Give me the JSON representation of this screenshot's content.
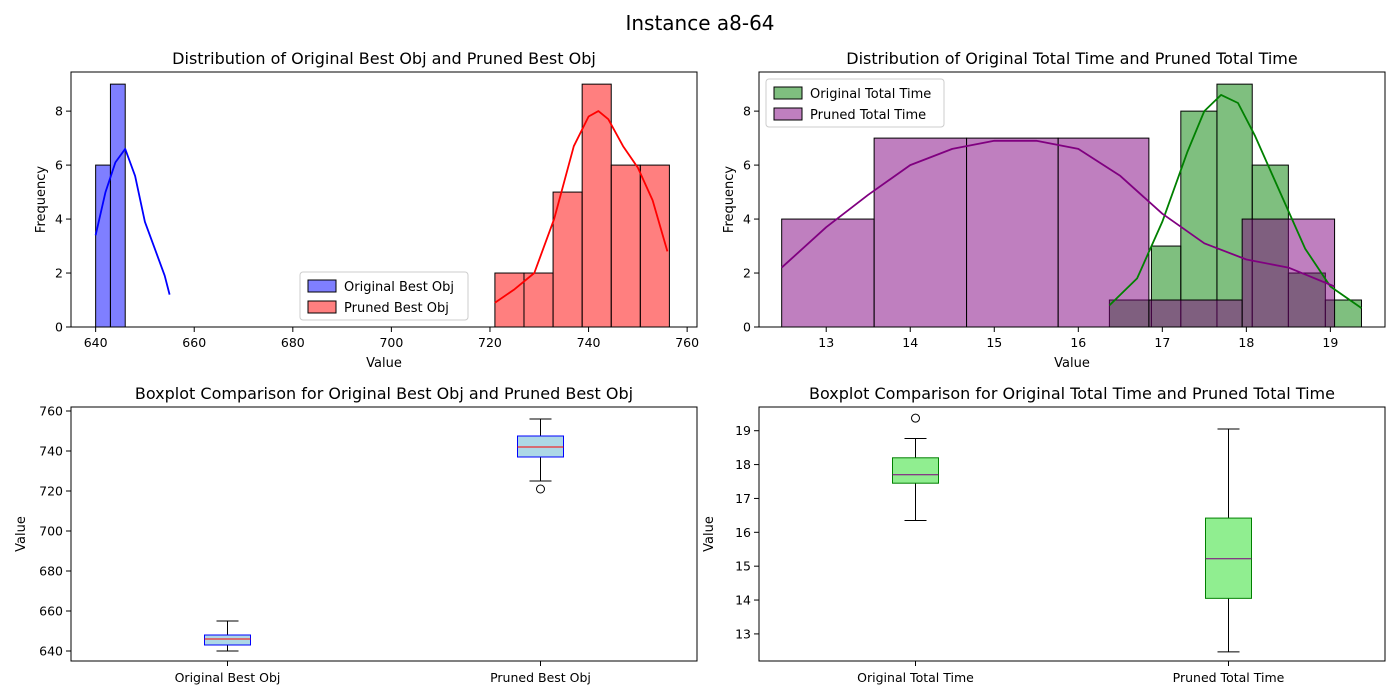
{
  "suptitle": "Instance a8-64",
  "colors": {
    "orig_obj": "#0000ff",
    "pruned_obj": "#ff0000",
    "orig_time": "#008000",
    "pruned_time": "#800080",
    "box_face_obj": "#add8e6",
    "box_face_time": "#90ee90"
  },
  "chart_data": [
    {
      "type": "histogram",
      "title": "Distribution of Original Best Obj and Pruned Best Obj",
      "xlabel": "Value",
      "ylabel": "Frequency",
      "xlim": [
        635,
        762
      ],
      "ylim": [
        0,
        9.45
      ],
      "xticks": [
        640,
        660,
        680,
        700,
        720,
        740,
        760
      ],
      "yticks": [
        0,
        2,
        4,
        6,
        8
      ],
      "legend": "lower-center",
      "series": [
        {
          "name": "Original Best Obj",
          "color": "#0000ff",
          "bins": [
            [
              640,
              643,
              6
            ],
            [
              643,
              646,
              9
            ],
            [
              646,
              649,
              0
            ],
            [
              649,
              652,
              0
            ],
            [
              652,
              655,
              0
            ]
          ],
          "kde": [
            [
              640,
              3.4
            ],
            [
              642,
              5.0
            ],
            [
              644,
              6.1
            ],
            [
              646,
              6.6
            ],
            [
              648,
              5.6
            ],
            [
              650,
              3.9
            ],
            [
              652,
              2.9
            ],
            [
              654,
              1.9
            ],
            [
              655,
              1.2
            ]
          ]
        },
        {
          "name": "Pruned Best Obj",
          "color": "#ff0000",
          "bins": [
            [
              721,
              726.9,
              2
            ],
            [
              726.9,
              732.8,
              2
            ],
            [
              732.8,
              738.7,
              5
            ],
            [
              738.7,
              744.6,
              9
            ],
            [
              744.6,
              750.5,
              6
            ],
            [
              750.5,
              756.4,
              6
            ]
          ],
          "kde": [
            [
              721,
              0.9
            ],
            [
              725,
              1.4
            ],
            [
              729,
              2.0
            ],
            [
              733,
              4.0
            ],
            [
              737,
              6.7
            ],
            [
              740,
              7.8
            ],
            [
              742,
              8.0
            ],
            [
              744,
              7.7
            ],
            [
              747,
              6.7
            ],
            [
              750,
              5.9
            ],
            [
              753,
              4.7
            ],
            [
              756,
              2.8
            ]
          ]
        }
      ]
    },
    {
      "type": "histogram",
      "title": "Distribution of Original Total Time and Pruned Total Time",
      "xlabel": "Value",
      "ylabel": "Frequency",
      "xlim": [
        12.2,
        19.65
      ],
      "ylim": [
        0,
        9.45
      ],
      "xticks": [
        13,
        14,
        15,
        16,
        17,
        18,
        19
      ],
      "yticks": [
        0,
        2,
        4,
        6,
        8
      ],
      "legend": "upper-left",
      "series": [
        {
          "name": "Original Total Time",
          "color": "#008000",
          "bins": [
            [
              16.37,
              16.87,
              1
            ],
            [
              16.87,
              17.22,
              3
            ],
            [
              17.22,
              17.65,
              8
            ],
            [
              17.65,
              18.07,
              9
            ],
            [
              18.07,
              18.5,
              6
            ],
            [
              18.5,
              18.94,
              2
            ],
            [
              18.94,
              19.37,
              1
            ]
          ],
          "kde": [
            [
              16.37,
              0.8
            ],
            [
              16.7,
              1.8
            ],
            [
              17.0,
              3.9
            ],
            [
              17.3,
              6.5
            ],
            [
              17.5,
              8.0
            ],
            [
              17.7,
              8.6
            ],
            [
              17.9,
              8.3
            ],
            [
              18.1,
              7.1
            ],
            [
              18.4,
              5.0
            ],
            [
              18.7,
              2.9
            ],
            [
              19.0,
              1.5
            ],
            [
              19.37,
              0.7
            ]
          ]
        },
        {
          "name": "Pruned Total Time",
          "color": "#800080",
          "bins": [
            [
              12.47,
              13.57,
              4
            ],
            [
              13.57,
              14.67,
              7
            ],
            [
              14.67,
              15.76,
              7
            ],
            [
              15.76,
              16.84,
              7
            ],
            [
              16.84,
              17.95,
              1
            ],
            [
              17.95,
              19.05,
              4
            ]
          ],
          "kde": [
            [
              12.47,
              2.2
            ],
            [
              13.0,
              3.7
            ],
            [
              13.5,
              4.9
            ],
            [
              14.0,
              6.0
            ],
            [
              14.5,
              6.6
            ],
            [
              15.0,
              6.9
            ],
            [
              15.5,
              6.9
            ],
            [
              16.0,
              6.6
            ],
            [
              16.5,
              5.6
            ],
            [
              17.0,
              4.2
            ],
            [
              17.5,
              3.1
            ],
            [
              18.0,
              2.5
            ],
            [
              18.5,
              2.2
            ],
            [
              19.05,
              1.5
            ]
          ]
        }
      ]
    },
    {
      "type": "boxplot",
      "title": "Boxplot Comparison for Original Best Obj and Pruned Best Obj",
      "ylabel": "Value",
      "ylim": [
        635,
        762
      ],
      "yticks": [
        640,
        660,
        680,
        700,
        720,
        740,
        760
      ],
      "categories": [
        "Original Best Obj",
        "Pruned Best Obj"
      ],
      "face": "#add8e6",
      "edge": "#0000ff",
      "median_color": "#ff0000",
      "boxes": [
        {
          "whislo": 640,
          "q1": 643,
          "med": 646,
          "q3": 648,
          "whishi": 655,
          "fliers": []
        },
        {
          "whislo": 725,
          "q1": 737,
          "med": 742,
          "q3": 747.5,
          "whishi": 756,
          "fliers": [
            721
          ]
        }
      ]
    },
    {
      "type": "boxplot",
      "title": "Boxplot Comparison for Original Total Time and Pruned Total Time",
      "ylabel": "Value",
      "ylim": [
        12.2,
        19.7
      ],
      "yticks": [
        13,
        14,
        15,
        16,
        17,
        18,
        19
      ],
      "categories": [
        "Original Total Time",
        "Pruned Total Time"
      ],
      "face": "#90ee90",
      "edge": "#008000",
      "median_color": "#800080",
      "boxes": [
        {
          "whislo": 16.35,
          "q1": 17.45,
          "med": 17.7,
          "q3": 18.2,
          "whishi": 18.77,
          "fliers": [
            19.37
          ]
        },
        {
          "whislo": 12.47,
          "q1": 14.05,
          "med": 15.22,
          "q3": 16.42,
          "whishi": 19.05,
          "fliers": []
        }
      ]
    }
  ]
}
